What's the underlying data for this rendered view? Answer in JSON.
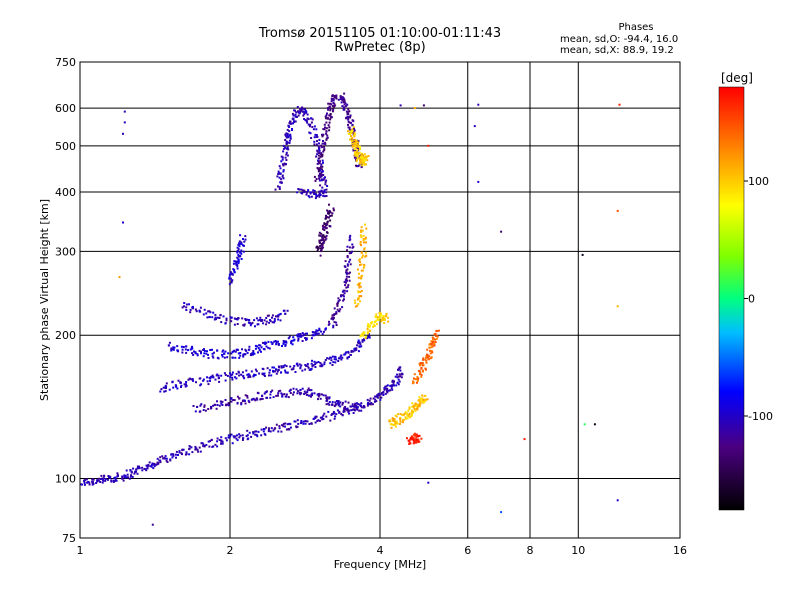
{
  "chart_data": {
    "type": "scatter",
    "title": "Tromsø 20151105 01:10:00-01:11:43",
    "subtitle": "RwPretec (8p)",
    "xlabel": "Frequency [MHz]",
    "ylabel": "Stationary phase Virtual Height [km]",
    "x_scale": "log",
    "y_scale": "log",
    "xlim": [
      1,
      16
    ],
    "ylim": [
      75,
      750
    ],
    "x_ticks": [
      1,
      2,
      4,
      6,
      8,
      10,
      16
    ],
    "y_ticks": [
      75,
      100,
      200,
      300,
      400,
      500,
      600,
      750
    ],
    "grid": true,
    "colorbar": {
      "label": "[deg]",
      "range": [
        -180,
        180
      ],
      "ticks": [
        -100,
        0,
        100
      ]
    },
    "stats": {
      "heading": "Phases",
      "o_line": "mean, sd,O: -94.4, 16.0",
      "x_line": "mean, sd,X: 88.9, 19.2"
    },
    "traces": [
      {
        "pts": [
          [
            1.0,
            98
          ],
          [
            1.08,
            99
          ],
          [
            1.15,
            100
          ],
          [
            1.22,
            101
          ],
          [
            1.3,
            104
          ],
          [
            1.4,
            107
          ],
          [
            1.5,
            111
          ],
          [
            1.65,
            114
          ],
          [
            1.8,
            118
          ],
          [
            2.0,
            121
          ],
          [
            2.2,
            124
          ],
          [
            2.45,
            127
          ],
          [
            2.7,
            130
          ],
          [
            3.0,
            133
          ],
          [
            3.3,
            137
          ],
          [
            3.6,
            141
          ],
          [
            3.9,
            146
          ],
          [
            4.1,
            152
          ],
          [
            4.3,
            160
          ],
          [
            4.45,
            170
          ]
        ],
        "phase": -110
      },
      {
        "pts": [
          [
            1.45,
            155
          ],
          [
            1.6,
            158
          ],
          [
            1.8,
            161
          ],
          [
            2.0,
            164
          ],
          [
            2.2,
            166
          ],
          [
            2.4,
            168
          ],
          [
            2.6,
            170
          ],
          [
            2.85,
            172
          ],
          [
            3.1,
            175
          ],
          [
            3.35,
            180
          ],
          [
            3.6,
            188
          ],
          [
            3.8,
            200
          ]
        ],
        "phase": -105
      },
      {
        "pts": [
          [
            1.5,
            190
          ],
          [
            1.65,
            186
          ],
          [
            1.8,
            183
          ],
          [
            2.0,
            182
          ],
          [
            2.15,
            184
          ],
          [
            2.3,
            188
          ],
          [
            2.5,
            192
          ],
          [
            2.7,
            196
          ],
          [
            2.9,
            200
          ],
          [
            3.1,
            204
          ]
        ],
        "phase": -100
      },
      {
        "pts": [
          [
            1.6,
            230
          ],
          [
            1.8,
            222
          ],
          [
            2.0,
            214
          ],
          [
            2.2,
            212
          ],
          [
            2.4,
            216
          ],
          [
            2.6,
            222
          ]
        ],
        "phase": -108
      },
      {
        "pts": [
          [
            1.7,
            140
          ],
          [
            1.9,
            143
          ],
          [
            2.1,
            146
          ],
          [
            2.3,
            149
          ],
          [
            2.55,
            151
          ],
          [
            2.8,
            152
          ],
          [
            3.0,
            150
          ],
          [
            3.2,
            145
          ],
          [
            3.4,
            142
          ],
          [
            3.7,
            140
          ]
        ],
        "phase": -115
      },
      {
        "pts": [
          [
            2.5,
            410
          ],
          [
            2.55,
            450
          ],
          [
            2.6,
            500
          ],
          [
            2.62,
            540
          ],
          [
            2.7,
            580
          ],
          [
            2.8,
            600
          ],
          [
            2.9,
            560
          ],
          [
            3.0,
            500
          ],
          [
            3.05,
            440
          ],
          [
            3.1,
            400
          ],
          [
            2.95,
            395
          ],
          [
            2.75,
            400
          ]
        ],
        "phase": -110
      },
      {
        "pts": [
          [
            3.0,
            420
          ],
          [
            3.05,
            470
          ],
          [
            3.1,
            520
          ],
          [
            3.15,
            570
          ],
          [
            3.2,
            610
          ],
          [
            3.25,
            640
          ]
        ],
        "phase": -130
      },
      {
        "pts": [
          [
            3.0,
            300
          ],
          [
            3.05,
            315
          ],
          [
            3.1,
            330
          ],
          [
            3.15,
            350
          ],
          [
            3.2,
            370
          ]
        ],
        "phase": -140
      },
      {
        "pts": [
          [
            3.35,
            640
          ],
          [
            3.4,
            600
          ],
          [
            3.5,
            560
          ],
          [
            3.55,
            520
          ],
          [
            3.6,
            480
          ],
          [
            3.65,
            450
          ]
        ],
        "phase": -125
      },
      {
        "pts": [
          [
            3.5,
            540
          ],
          [
            3.55,
            510
          ],
          [
            3.6,
            490
          ],
          [
            3.65,
            470
          ],
          [
            3.7,
            460
          ],
          [
            3.75,
            480
          ]
        ],
        "phase": 100
      },
      {
        "pts": [
          [
            3.2,
            210
          ],
          [
            3.3,
            225
          ],
          [
            3.4,
            250
          ],
          [
            3.45,
            280
          ],
          [
            3.5,
            320
          ]
        ],
        "phase": -120
      },
      {
        "pts": [
          [
            3.6,
            230
          ],
          [
            3.65,
            260
          ],
          [
            3.7,
            300
          ],
          [
            3.72,
            340
          ]
        ],
        "phase": 110
      },
      {
        "pts": [
          [
            4.2,
            130
          ],
          [
            4.35,
            133
          ],
          [
            4.5,
            136
          ],
          [
            4.65,
            140
          ],
          [
            4.8,
            144
          ],
          [
            4.95,
            148
          ]
        ],
        "phase": 105
      },
      {
        "pts": [
          [
            4.7,
            160
          ],
          [
            4.85,
            170
          ],
          [
            5.0,
            180
          ],
          [
            5.1,
            192
          ],
          [
            5.2,
            205
          ]
        ],
        "phase": 140
      },
      {
        "pts": [
          [
            3.7,
            200
          ],
          [
            3.85,
            210
          ],
          [
            4.0,
            220
          ],
          [
            4.15,
            215
          ]
        ],
        "phase": 95
      },
      {
        "pts": [
          [
            4.6,
            120
          ],
          [
            4.7,
            122
          ],
          [
            4.8,
            121
          ]
        ],
        "phase": 170
      },
      {
        "pts": [
          [
            2.0,
            260
          ],
          [
            2.05,
            280
          ],
          [
            2.1,
            300
          ],
          [
            2.12,
            320
          ]
        ],
        "phase": -100
      }
    ],
    "isolated_points": [
      {
        "x": 1.23,
        "y": 590,
        "phase": -110
      },
      {
        "x": 1.23,
        "y": 560,
        "phase": -110
      },
      {
        "x": 1.22,
        "y": 530,
        "phase": -110
      },
      {
        "x": 1.22,
        "y": 345,
        "phase": -100
      },
      {
        "x": 1.2,
        "y": 265,
        "phase": 120
      },
      {
        "x": 6.3,
        "y": 420,
        "phase": -100
      },
      {
        "x": 6.2,
        "y": 550,
        "phase": -110
      },
      {
        "x": 6.3,
        "y": 610,
        "phase": -110
      },
      {
        "x": 7.0,
        "y": 330,
        "phase": -140
      },
      {
        "x": 10.2,
        "y": 295,
        "phase": -170
      },
      {
        "x": 12.1,
        "y": 610,
        "phase": 170
      },
      {
        "x": 12.0,
        "y": 365,
        "phase": 150
      },
      {
        "x": 12.0,
        "y": 230,
        "phase": 110
      },
      {
        "x": 10.8,
        "y": 130,
        "phase": -170
      },
      {
        "x": 10.3,
        "y": 130,
        "phase": 10
      },
      {
        "x": 7.8,
        "y": 121,
        "phase": 170
      },
      {
        "x": 7.0,
        "y": 85,
        "phase": -60
      },
      {
        "x": 12.0,
        "y": 90,
        "phase": -100
      },
      {
        "x": 5.0,
        "y": 98,
        "phase": -100
      },
      {
        "x": 5.0,
        "y": 500,
        "phase": 170
      },
      {
        "x": 4.7,
        "y": 600,
        "phase": 110
      },
      {
        "x": 4.4,
        "y": 608,
        "phase": -110
      },
      {
        "x": 4.9,
        "y": 608,
        "phase": -140
      },
      {
        "x": 1.4,
        "y": 80,
        "phase": -120
      }
    ]
  }
}
